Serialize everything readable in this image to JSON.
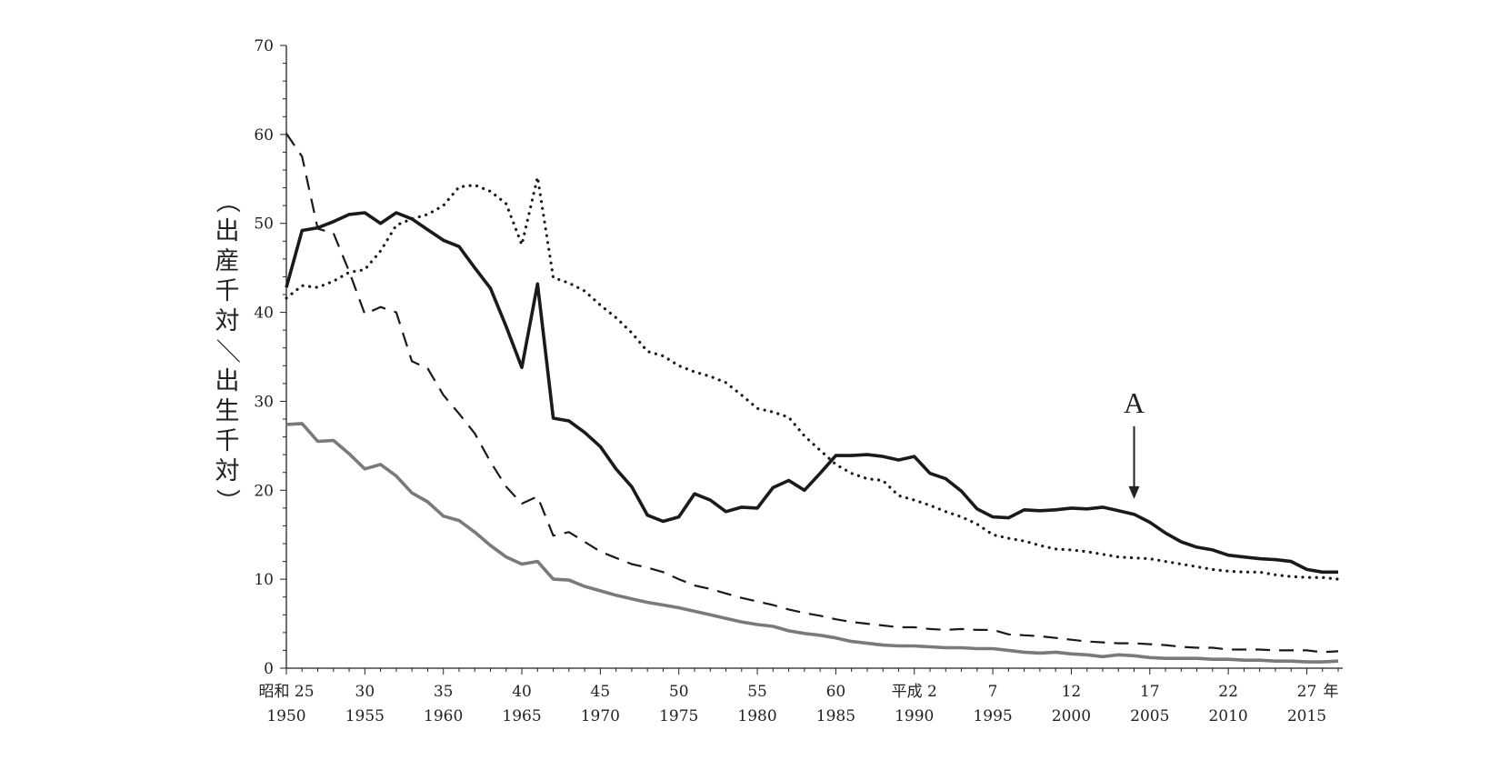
{
  "chart_data": {
    "type": "line",
    "ylabel": "（出産千対／出生千対）",
    "ylim": [
      0,
      70
    ],
    "xlim": [
      1950,
      2017
    ],
    "y_ticks": [
      "0",
      "10",
      "20",
      "30",
      "40",
      "50",
      "60",
      "70"
    ],
    "x_ticks": [
      {
        "year": 1950,
        "era": "昭和 25",
        "western": "1950"
      },
      {
        "year": 1955,
        "era": "30",
        "western": "1955"
      },
      {
        "year": 1960,
        "era": "35",
        "western": "1960"
      },
      {
        "year": 1965,
        "era": "40",
        "western": "1965"
      },
      {
        "year": 1970,
        "era": "45",
        "western": "1970"
      },
      {
        "year": 1975,
        "era": "50",
        "western": "1975"
      },
      {
        "year": 1980,
        "era": "55",
        "western": "1980"
      },
      {
        "year": 1985,
        "era": "60",
        "western": "1985"
      },
      {
        "year": 1990,
        "era": "平成 2",
        "western": "1990"
      },
      {
        "year": 1995,
        "era": "7",
        "western": "1995"
      },
      {
        "year": 2000,
        "era": "12",
        "western": "2000"
      },
      {
        "year": 2005,
        "era": "17",
        "western": "2005"
      },
      {
        "year": 2010,
        "era": "22",
        "western": "2010"
      },
      {
        "year": 2015,
        "era": "27",
        "western": "2015"
      }
    ],
    "x_unit_label": "年",
    "annotations": [
      {
        "text": "A",
        "x": 2004,
        "y": 18.2
      }
    ],
    "series": [
      {
        "style": "solid-black",
        "color": "#1a1a1a",
        "x": [
          1950,
          1951,
          1952,
          1953,
          1954,
          1955,
          1956,
          1957,
          1958,
          1959,
          1960,
          1961,
          1962,
          1963,
          1964,
          1965,
          1966,
          1967,
          1968,
          1969,
          1970,
          1971,
          1972,
          1973,
          1974,
          1975,
          1976,
          1977,
          1978,
          1979,
          1980,
          1981,
          1982,
          1983,
          1984,
          1985,
          1986,
          1987,
          1988,
          1989,
          1990,
          1991,
          1992,
          1993,
          1994,
          1995,
          1996,
          1997,
          1998,
          1999,
          2000,
          2001,
          2002,
          2003,
          2004,
          2005,
          2006,
          2007,
          2008,
          2009,
          2010,
          2011,
          2012,
          2013,
          2014,
          2015,
          2016,
          2017
        ],
        "values": [
          42.8,
          49.2,
          49.5,
          50.2,
          51.0,
          51.2,
          50.0,
          51.2,
          50.5,
          49.3,
          48.1,
          47.4,
          45.0,
          42.7,
          38.4,
          33.8,
          43.2,
          28.1,
          27.8,
          26.5,
          24.9,
          22.4,
          20.4,
          17.2,
          16.5,
          17.0,
          19.6,
          18.9,
          17.6,
          18.1,
          18.0,
          20.3,
          21.1,
          20.0,
          21.9,
          23.9,
          23.9,
          24.0,
          23.8,
          23.4,
          23.8,
          21.9,
          21.3,
          19.9,
          17.9,
          17.0,
          16.9,
          17.8,
          17.7,
          17.8,
          18.0,
          17.9,
          18.1,
          17.7,
          17.3,
          16.4,
          15.2,
          14.2,
          13.6,
          13.3,
          12.7,
          12.5,
          12.3,
          12.2,
          12.0,
          11.1,
          10.8,
          10.8
        ]
      },
      {
        "style": "dotted-black",
        "color": "#1a1a1a",
        "x": [
          1950,
          1951,
          1952,
          1953,
          1954,
          1955,
          1956,
          1957,
          1958,
          1959,
          1960,
          1961,
          1962,
          1963,
          1964,
          1965,
          1966,
          1967,
          1968,
          1969,
          1970,
          1971,
          1972,
          1973,
          1974,
          1975,
          1976,
          1977,
          1978,
          1979,
          1980,
          1981,
          1982,
          1983,
          1984,
          1985,
          1986,
          1987,
          1988,
          1989,
          1990,
          1991,
          1992,
          1993,
          1994,
          1995,
          1996,
          1997,
          1998,
          1999,
          2000,
          2001,
          2002,
          2003,
          2004,
          2005,
          2006,
          2007,
          2008,
          2009,
          2010,
          2011,
          2012,
          2013,
          2014,
          2015,
          2016,
          2017
        ],
        "values": [
          41.6,
          43.0,
          42.8,
          43.5,
          44.5,
          44.8,
          46.9,
          49.8,
          50.5,
          51.0,
          52.0,
          54.1,
          54.3,
          53.6,
          52.2,
          47.6,
          55.2,
          43.9,
          43.3,
          42.4,
          40.8,
          39.4,
          37.7,
          35.6,
          35.1,
          34.0,
          33.3,
          32.8,
          32.1,
          30.7,
          29.2,
          28.8,
          28.2,
          26.1,
          24.5,
          22.9,
          21.9,
          21.3,
          21.1,
          19.4,
          18.9,
          18.3,
          17.6,
          17.0,
          16.2,
          15.0,
          14.6,
          14.3,
          13.8,
          13.4,
          13.3,
          13.1,
          12.8,
          12.5,
          12.4,
          12.3,
          12.0,
          11.7,
          11.4,
          11.1,
          10.9,
          10.8,
          10.8,
          10.5,
          10.3,
          10.2,
          10.2,
          10.0
        ]
      },
      {
        "style": "dashed-black",
        "color": "#1a1a1a",
        "x": [
          1950,
          1951,
          1952,
          1953,
          1954,
          1955,
          1956,
          1957,
          1958,
          1959,
          1960,
          1961,
          1962,
          1963,
          1964,
          1965,
          1966,
          1967,
          1968,
          1969,
          1970,
          1971,
          1972,
          1973,
          1974,
          1975,
          1976,
          1977,
          1978,
          1979,
          1980,
          1981,
          1982,
          1983,
          1984,
          1985,
          1986,
          1987,
          1988,
          1989,
          1990,
          1991,
          1992,
          1993,
          1994,
          1995,
          1996,
          1997,
          1998,
          1999,
          2000,
          2001,
          2002,
          2003,
          2004,
          2005,
          2006,
          2007,
          2008,
          2009,
          2010,
          2011,
          2012,
          2013,
          2014,
          2015,
          2016,
          2017
        ],
        "values": [
          60.1,
          57.5,
          49.4,
          48.9,
          44.6,
          39.8,
          40.6,
          40.0,
          34.5,
          33.7,
          30.7,
          28.6,
          26.4,
          23.2,
          20.4,
          18.5,
          19.3,
          14.9,
          15.3,
          14.2,
          13.1,
          12.4,
          11.7,
          11.3,
          10.8,
          10.0,
          9.3,
          8.9,
          8.4,
          7.9,
          7.5,
          7.1,
          6.6,
          6.2,
          5.9,
          5.5,
          5.2,
          5.0,
          4.8,
          4.6,
          4.6,
          4.4,
          4.3,
          4.4,
          4.3,
          4.3,
          3.8,
          3.7,
          3.6,
          3.4,
          3.2,
          3.0,
          2.9,
          2.8,
          2.8,
          2.7,
          2.6,
          2.4,
          2.3,
          2.3,
          2.1,
          2.1,
          2.1,
          2.0,
          2.0,
          2.0,
          1.8,
          1.9
        ]
      },
      {
        "style": "solid-gray",
        "color": "#7a7a7a",
        "x": [
          1950,
          1951,
          1952,
          1953,
          1954,
          1955,
          1956,
          1957,
          1958,
          1959,
          1960,
          1961,
          1962,
          1963,
          1964,
          1965,
          1966,
          1967,
          1968,
          1969,
          1970,
          1971,
          1972,
          1973,
          1974,
          1975,
          1976,
          1977,
          1978,
          1979,
          1980,
          1981,
          1982,
          1983,
          1984,
          1985,
          1986,
          1987,
          1988,
          1989,
          1990,
          1991,
          1992,
          1993,
          1994,
          1995,
          1996,
          1997,
          1998,
          1999,
          2000,
          2001,
          2002,
          2003,
          2004,
          2005,
          2006,
          2007,
          2008,
          2009,
          2010,
          2011,
          2012,
          2013,
          2014,
          2015,
          2016,
          2017
        ],
        "values": [
          27.4,
          27.5,
          25.5,
          25.6,
          24.1,
          22.4,
          22.9,
          21.6,
          19.7,
          18.7,
          17.1,
          16.6,
          15.3,
          13.8,
          12.5,
          11.7,
          12.0,
          10.0,
          9.9,
          9.2,
          8.7,
          8.2,
          7.8,
          7.4,
          7.1,
          6.8,
          6.4,
          6.0,
          5.6,
          5.2,
          4.9,
          4.7,
          4.2,
          3.9,
          3.7,
          3.4,
          3.0,
          2.8,
          2.6,
          2.5,
          2.5,
          2.4,
          2.3,
          2.3,
          2.2,
          2.2,
          2.0,
          1.8,
          1.7,
          1.8,
          1.6,
          1.5,
          1.3,
          1.5,
          1.4,
          1.2,
          1.1,
          1.1,
          1.1,
          1.0,
          1.0,
          0.9,
          0.9,
          0.8,
          0.8,
          0.7,
          0.7,
          0.8
        ]
      }
    ]
  }
}
